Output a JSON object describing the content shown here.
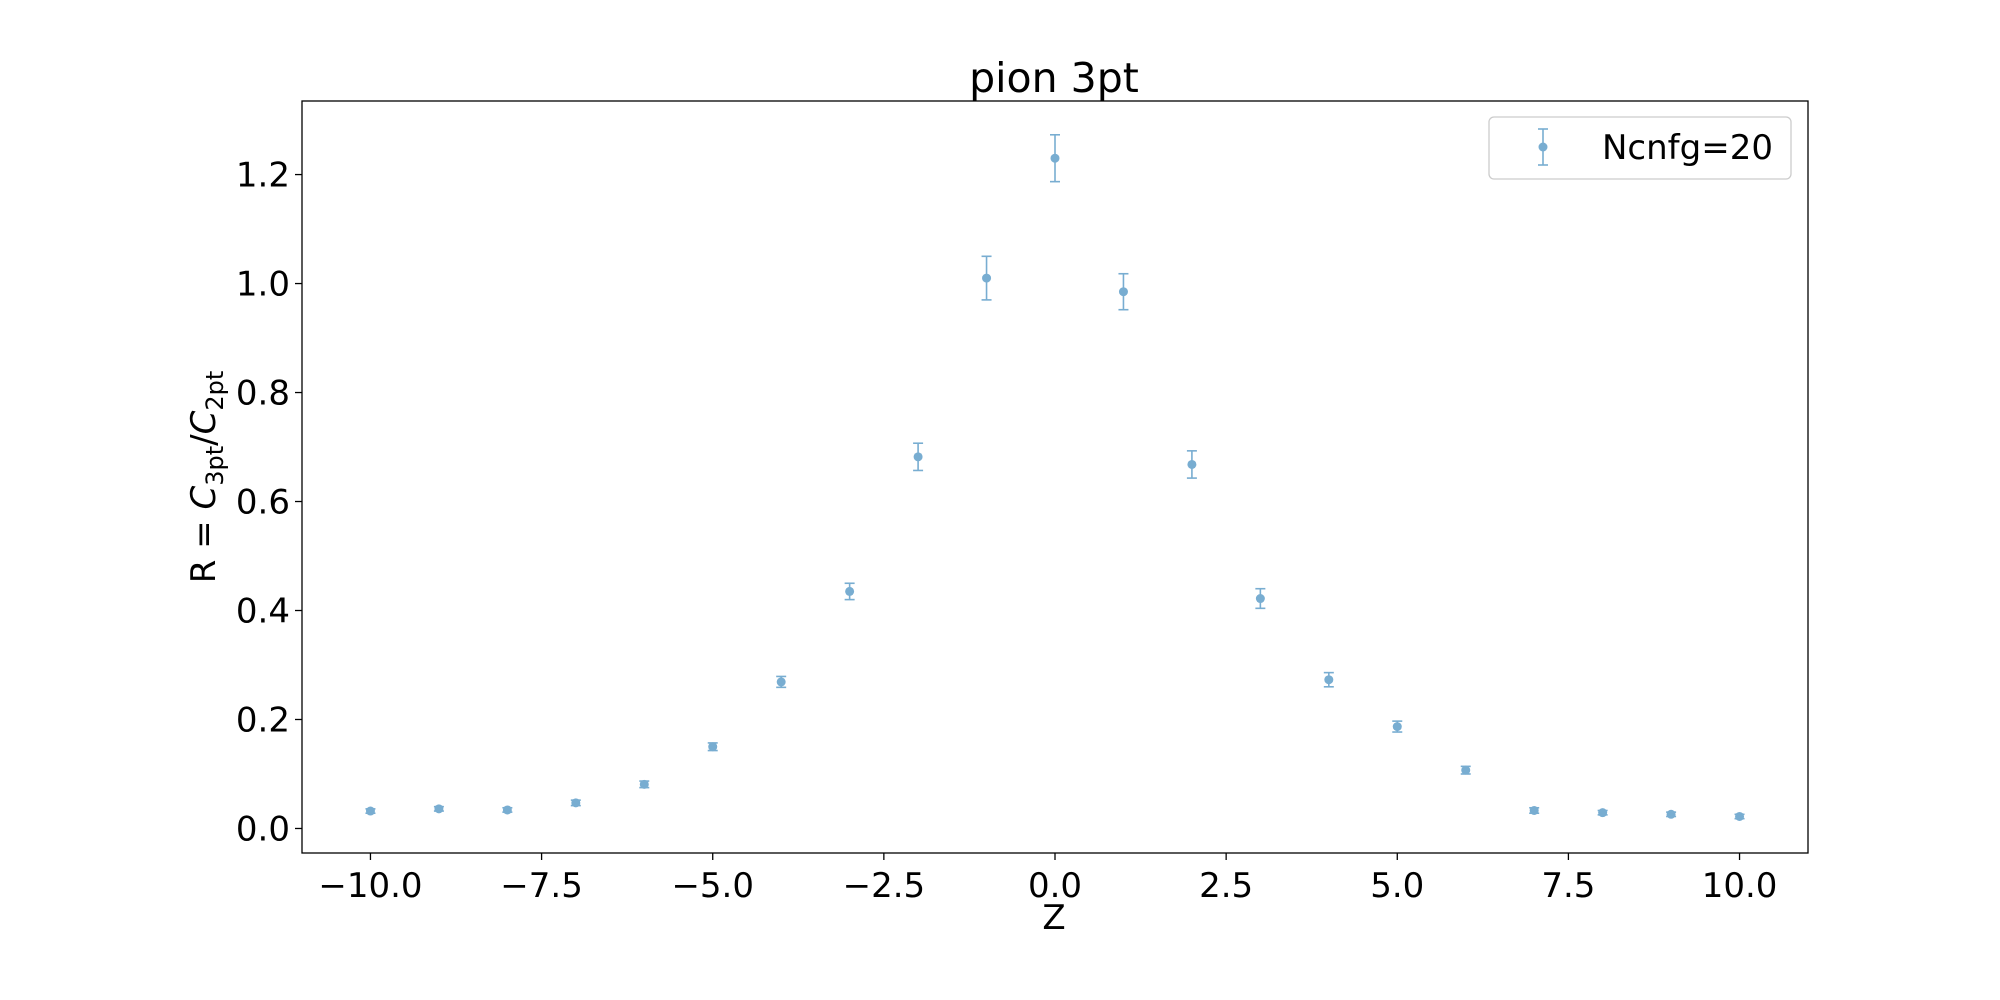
{
  "chart_data": {
    "type": "scatter",
    "title": "pion 3pt",
    "xlabel": "Z",
    "ylabel": {
      "prefix": "R = ",
      "c1": "C",
      "sub1": "3pt",
      "slash": "/",
      "c2": "C",
      "sub2": "2pt"
    },
    "xlim": [
      -11.0,
      11.0
    ],
    "ylim": [
      -0.045,
      1.335
    ],
    "xticks": [
      -10.0,
      -7.5,
      -5.0,
      -2.5,
      0.0,
      2.5,
      5.0,
      7.5,
      10.0
    ],
    "xtick_labels": [
      "−10.0",
      "−7.5",
      "−5.0",
      "−2.5",
      "0.0",
      "2.5",
      "5.0",
      "7.5",
      "10.0"
    ],
    "yticks": [
      0.0,
      0.2,
      0.4,
      0.6,
      0.8,
      1.0,
      1.2
    ],
    "ytick_labels": [
      "0.0",
      "0.2",
      "0.4",
      "0.6",
      "0.8",
      "1.0",
      "1.2"
    ],
    "grid": false,
    "legend_position": "top-right",
    "series": [
      {
        "name": "Ncnfg=20",
        "color": "#1f77b4",
        "x": [
          -10,
          -9,
          -8,
          -7,
          -6,
          -5,
          -4,
          -3,
          -2,
          -1,
          0,
          1,
          2,
          3,
          4,
          5,
          6,
          7,
          8,
          9,
          10
        ],
        "y": [
          0.032,
          0.036,
          0.034,
          0.047,
          0.081,
          0.15,
          0.269,
          0.435,
          0.682,
          1.01,
          1.23,
          0.985,
          0.668,
          0.422,
          0.273,
          0.187,
          0.107,
          0.033,
          0.029,
          0.026,
          0.022
        ],
        "yerr": [
          0.004,
          0.004,
          0.004,
          0.005,
          0.006,
          0.007,
          0.01,
          0.015,
          0.025,
          0.04,
          0.043,
          0.033,
          0.025,
          0.018,
          0.013,
          0.01,
          0.007,
          0.005,
          0.004,
          0.004,
          0.004
        ]
      }
    ]
  }
}
